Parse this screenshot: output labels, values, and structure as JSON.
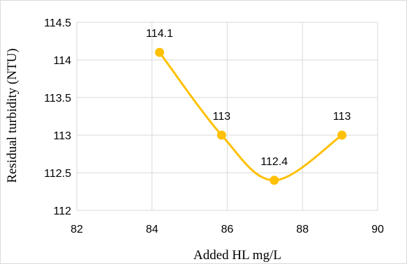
{
  "chart_data": {
    "type": "scatter",
    "title": "",
    "xlabel": "Added HL mg/L",
    "ylabel": "Residual turbidity (NTU)",
    "xlim": [
      82,
      90
    ],
    "ylim": [
      112,
      114.5
    ],
    "xticks": [
      82,
      84,
      86,
      88,
      90
    ],
    "yticks": [
      112,
      112.5,
      113,
      113.5,
      114,
      114.5
    ],
    "grid": true,
    "smooth_line": true,
    "series": [
      {
        "color": "#FFC000",
        "x": [
          84.2,
          85.85,
          87.25,
          89.05
        ],
        "y": [
          114.1,
          113,
          112.4,
          113
        ],
        "labels": [
          "114.1",
          "113",
          "112.4",
          "113"
        ]
      }
    ]
  }
}
